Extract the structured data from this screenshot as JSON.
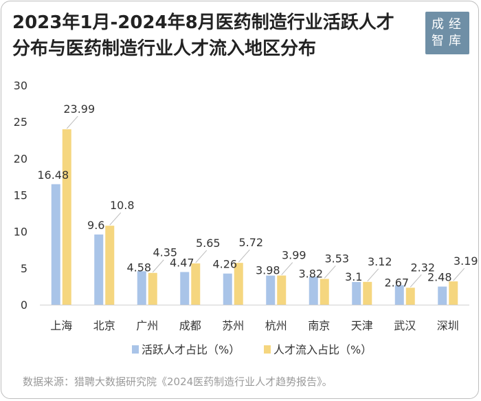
{
  "title_line1": "2023年1月-2024年8月医药制造行业活跃人才",
  "title_line2": "分布与医药制造行业人才流入地区分布",
  "logo": {
    "chars": [
      "成",
      "经",
      "智",
      "库"
    ],
    "color": "#6f8fa6"
  },
  "source": "数据来源：猎聘大数据研究院《2024医药制造行业人才趋势报告》。",
  "chart_data": {
    "type": "bar",
    "categories": [
      "上海",
      "北京",
      "广州",
      "成都",
      "苏州",
      "杭州",
      "南京",
      "天津",
      "武汉",
      "深圳"
    ],
    "series": [
      {
        "name": "活跃人才占比（%）",
        "color": "#a9c4e8",
        "values": [
          16.48,
          9.6,
          4.58,
          4.47,
          4.26,
          3.98,
          3.82,
          3.1,
          2.67,
          2.48
        ]
      },
      {
        "name": "人才流入占比（%）",
        "color": "#f5d67f",
        "values": [
          23.99,
          10.8,
          4.35,
          5.65,
          5.72,
          3.99,
          3.53,
          3.12,
          2.32,
          3.19
        ]
      }
    ],
    "value_labels": [
      [
        "16.48",
        "9.6",
        "4.58",
        "4.47",
        "4.26",
        "3.98",
        "3.82",
        "3.1",
        "2.67",
        "2.48"
      ],
      [
        "23.99",
        "10.8",
        "4.35",
        "5.65",
        "5.72",
        "3.99",
        "3.53",
        "3.12",
        "2.32",
        "3.19"
      ]
    ],
    "ylim": [
      0,
      30
    ],
    "yticks": [
      "0",
      "5",
      "10",
      "15",
      "20",
      "25",
      "30"
    ],
    "grid": false,
    "legend": "bottom"
  }
}
